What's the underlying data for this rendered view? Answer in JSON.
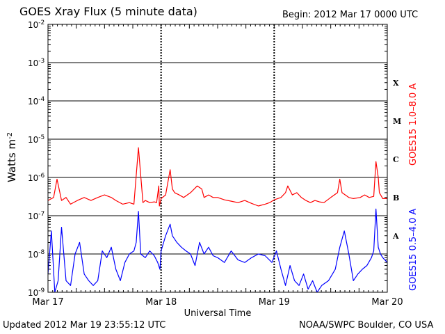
{
  "header": {
    "title": "GOES Xray Flux (5 minute data)",
    "begin": "Begin:  2012 Mar 17 0000 UTC"
  },
  "footer": {
    "updated": "Updated 2012 Mar 19 23:55:12 UTC",
    "credit": "NOAA/SWPC Boulder, CO USA"
  },
  "colors": {
    "long_channel": "#ff0000",
    "short_channel": "#0000ff",
    "grid": "#000000"
  },
  "chart_data": {
    "type": "line",
    "title": "GOES Xray Flux (5 minute data)",
    "xlabel": "Universal Time",
    "ylabel": "Watts m",
    "ylabel_sup": "-2",
    "yscale": "log",
    "ylim": [
      1e-09,
      0.01
    ],
    "y_tick_exponents": [
      -2,
      -3,
      -4,
      -5,
      -6,
      -7,
      -8,
      -9
    ],
    "x_unit": "days since 2012 Mar 17 0000 UTC",
    "xlim": [
      0,
      3
    ],
    "x_ticks": [
      {
        "x": 0,
        "label": "Mar 17"
      },
      {
        "x": 1,
        "label": "Mar 18"
      },
      {
        "x": 2,
        "label": "Mar 19"
      },
      {
        "x": 3,
        "label": "Mar 20"
      }
    ],
    "flare_classes": [
      {
        "label": "X",
        "flux": 0.0003
      },
      {
        "label": "M",
        "flux": 3e-05
      },
      {
        "label": "C",
        "flux": 3e-06
      },
      {
        "label": "B",
        "flux": 3e-07
      },
      {
        "label": "A",
        "flux": 3e-08
      }
    ],
    "right_labels": [
      {
        "text": "GOES15 1.0–8.0 A",
        "color": "#ff0000"
      },
      {
        "text": "GOES15 0.5–4.0 A",
        "color": "#0000ff"
      }
    ],
    "grid": "horizontal at each decade, dashed verticals at day boundaries",
    "series": [
      {
        "name": "GOES15 1.0–8.0 A",
        "color": "#ff0000",
        "x": [
          0.0,
          0.05,
          0.08,
          0.12,
          0.16,
          0.2,
          0.26,
          0.32,
          0.38,
          0.44,
          0.5,
          0.56,
          0.6,
          0.66,
          0.72,
          0.76,
          0.8,
          0.84,
          0.86,
          0.9,
          0.94,
          0.96,
          0.98,
          0.985,
          1.0,
          1.04,
          1.08,
          1.1,
          1.12,
          1.16,
          1.2,
          1.26,
          1.32,
          1.36,
          1.38,
          1.42,
          1.46,
          1.5,
          1.56,
          1.62,
          1.68,
          1.74,
          1.8,
          1.86,
          1.92,
          1.96,
          2.0,
          2.06,
          2.1,
          2.12,
          2.16,
          2.2,
          2.24,
          2.28,
          2.32,
          2.36,
          2.4,
          2.44,
          2.5,
          2.56,
          2.58,
          2.6,
          2.66,
          2.7,
          2.76,
          2.8,
          2.84,
          2.88,
          2.9,
          2.92,
          2.93,
          2.96,
          3.0
        ],
        "values": [
          2.5e-07,
          3e-07,
          9e-07,
          2.5e-07,
          3e-07,
          2e-07,
          2.5e-07,
          3e-07,
          2.5e-07,
          3e-07,
          3.5e-07,
          3e-07,
          2.5e-07,
          2e-07,
          2.2e-07,
          2e-07,
          6e-06,
          2.2e-07,
          2.5e-07,
          2.2e-07,
          2.3e-07,
          2.2e-07,
          6e-07,
          1.8e-07,
          2.8e-07,
          3.5e-07,
          1.6e-06,
          5e-07,
          4e-07,
          3.5e-07,
          3e-07,
          4e-07,
          6e-07,
          5e-07,
          3e-07,
          3.5e-07,
          3e-07,
          3e-07,
          2.6e-07,
          2.4e-07,
          2.2e-07,
          2.5e-07,
          2.1e-07,
          1.8e-07,
          2e-07,
          2.2e-07,
          2.6e-07,
          3e-07,
          4e-07,
          6e-07,
          3.5e-07,
          4e-07,
          3e-07,
          2.5e-07,
          2.2e-07,
          2.5e-07,
          2.3e-07,
          2.2e-07,
          3e-07,
          4e-07,
          9e-07,
          4e-07,
          3e-07,
          2.8e-07,
          3e-07,
          3.5e-07,
          3e-07,
          3.2e-07,
          2.6e-06,
          1e-06,
          4e-07,
          2.8e-07,
          2.8e-07
        ]
      },
      {
        "name": "GOES15 0.5–4.0 A",
        "color": "#0000ff",
        "x": [
          0.0,
          0.03,
          0.06,
          0.09,
          0.12,
          0.16,
          0.2,
          0.24,
          0.28,
          0.32,
          0.36,
          0.4,
          0.44,
          0.48,
          0.52,
          0.56,
          0.6,
          0.64,
          0.68,
          0.72,
          0.76,
          0.78,
          0.8,
          0.82,
          0.86,
          0.9,
          0.94,
          0.97,
          0.99,
          1.0,
          1.04,
          1.08,
          1.1,
          1.14,
          1.18,
          1.22,
          1.26,
          1.3,
          1.34,
          1.38,
          1.42,
          1.46,
          1.5,
          1.56,
          1.62,
          1.68,
          1.74,
          1.8,
          1.86,
          1.92,
          1.98,
          2.02,
          2.06,
          2.1,
          2.14,
          2.18,
          2.22,
          2.26,
          2.3,
          2.34,
          2.38,
          2.42,
          2.48,
          2.54,
          2.58,
          2.62,
          2.66,
          2.7,
          2.74,
          2.78,
          2.82,
          2.86,
          2.88,
          2.9,
          2.92,
          2.94,
          2.96,
          3.0
        ],
        "values": [
          3e-09,
          4e-08,
          1e-09,
          2e-09,
          5e-08,
          2e-09,
          1.5e-09,
          1e-08,
          2e-08,
          3e-09,
          2e-09,
          1.5e-09,
          2e-09,
          1.2e-08,
          8e-09,
          1.5e-08,
          4e-09,
          2e-09,
          6e-09,
          1e-08,
          1.2e-08,
          2e-08,
          1.3e-07,
          1e-08,
          8e-09,
          1.2e-08,
          9e-09,
          6e-09,
          4e-09,
          1.2e-08,
          3e-08,
          6e-08,
          3e-08,
          2e-08,
          1.5e-08,
          1.2e-08,
          1e-08,
          5e-09,
          2e-08,
          1e-08,
          1.5e-08,
          9e-09,
          8e-09,
          6e-09,
          1.2e-08,
          7e-09,
          6e-09,
          8e-09,
          1e-08,
          9e-09,
          6e-09,
          1.2e-08,
          4e-09,
          1.5e-09,
          5e-09,
          2e-09,
          1.5e-09,
          3e-09,
          1.2e-09,
          2e-09,
          1e-09,
          1.5e-09,
          2e-09,
          4e-09,
          1.5e-08,
          4e-08,
          1e-08,
          2e-09,
          3e-09,
          4e-09,
          5e-09,
          8e-09,
          1.2e-08,
          1.5e-07,
          1.5e-08,
          1e-08,
          8e-09,
          6e-09
        ]
      }
    ]
  }
}
